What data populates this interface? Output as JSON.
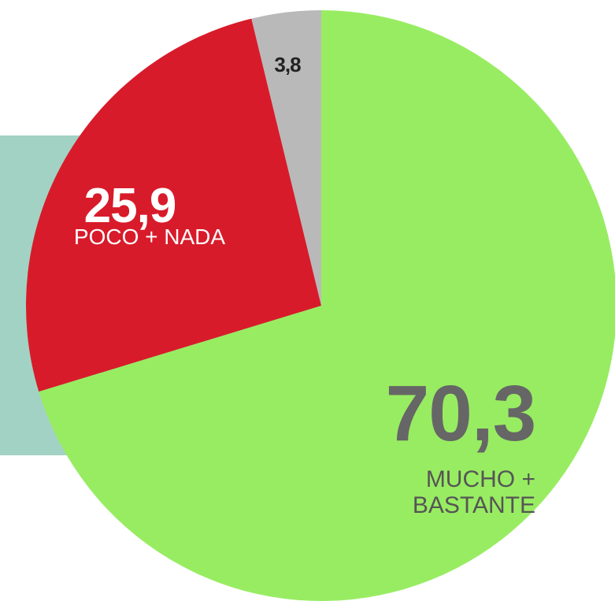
{
  "chart_data": {
    "type": "pie",
    "categories": [
      "MUCHO + BASTANTE",
      "POCO + NADA",
      null
    ],
    "values": [
      70.3,
      25.9,
      3.8
    ],
    "value_labels": [
      "70,3",
      "25,9",
      "3,8"
    ],
    "colors": [
      "#98ec62",
      "#d81b2a",
      "#b9b9b9"
    ]
  }
}
